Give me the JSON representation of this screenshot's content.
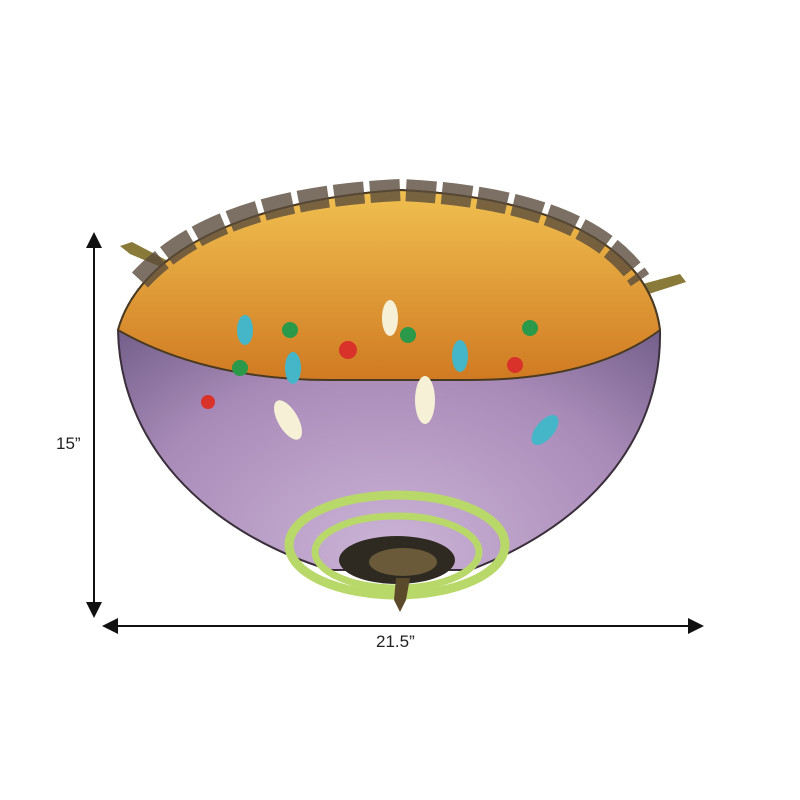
{
  "product": {
    "description_visible": "",
    "dimensions": {
      "height_label": "15”",
      "width_label": "21.5”"
    },
    "colors": {
      "shade_purple": "#a98bb8",
      "band_amber": "#e8a53a",
      "ring_green": "#b9d86a",
      "metal": "#3a3a2e"
    }
  }
}
